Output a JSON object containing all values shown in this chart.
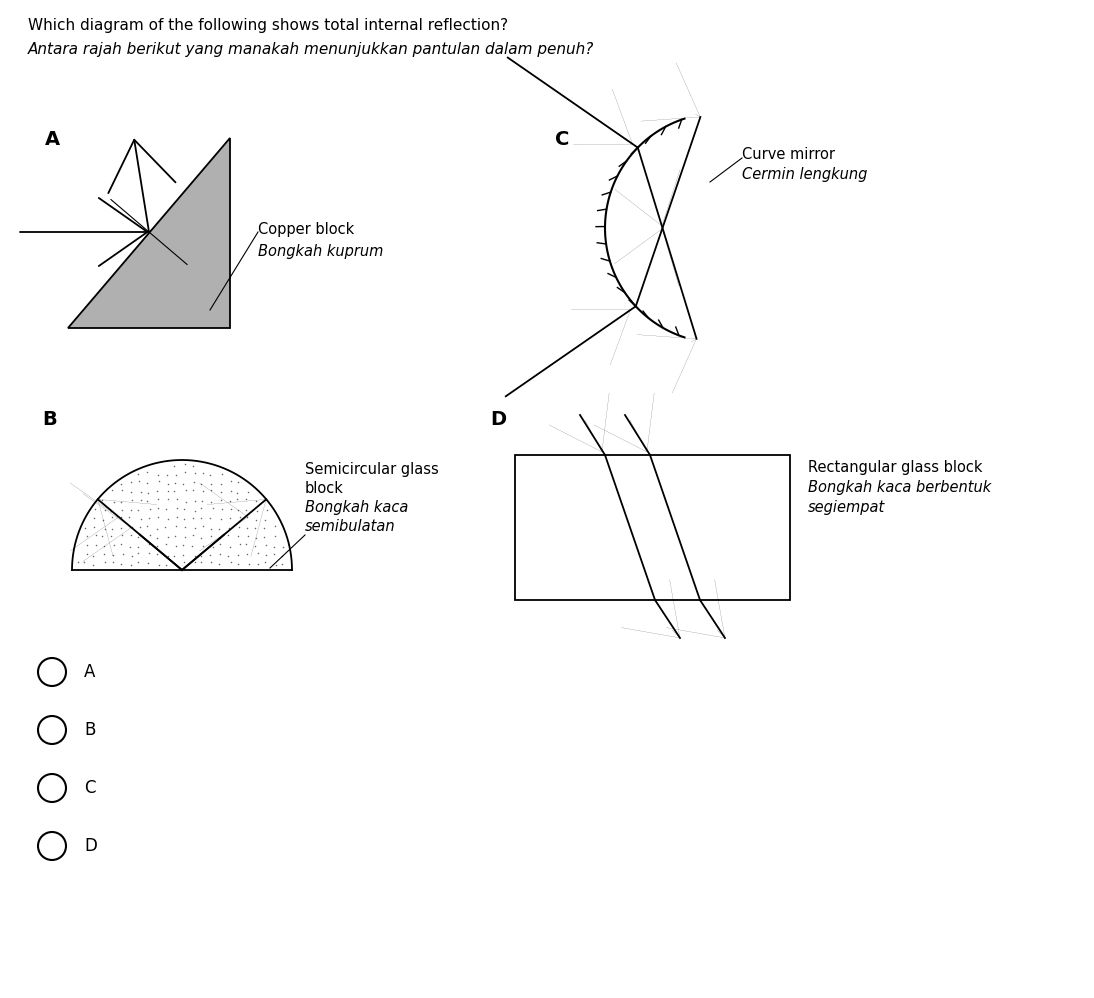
{
  "title_line1": "Which diagram of the following shows total internal reflection?",
  "title_line2": "Antara rajah berikut yang manakah menunjukkan pantulan dalam penuh?",
  "bg_color": "#ffffff",
  "text_color": "#000000",
  "copper_label": [
    "Copper block",
    "Bongkah kuprum"
  ],
  "curve_label": [
    "Curve mirror",
    "Cermin lengkung"
  ],
  "semi_label": [
    "Semicircular glass",
    "block",
    "Bongkah kaca",
    "semibulatan"
  ],
  "rect_label": [
    "Rectangular glass block",
    "Bongkah kaca berbentuk",
    "segiempat"
  ],
  "options": [
    "A",
    "B",
    "C",
    "D"
  ],
  "tri_fill": "#b0b0b0",
  "semi_dot_color": "#888888"
}
